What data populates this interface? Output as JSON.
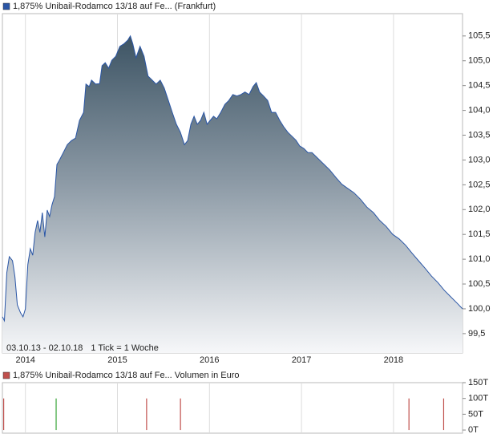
{
  "chart_data": [
    {
      "type": "area",
      "series": [
        {
          "name": "1,875% Unibail-Rodamco 13/18 auf Fe... (Frankfurt)",
          "color": "#2a56a6",
          "x": [
            2013.75,
            2013.772,
            2013.798,
            2013.825,
            2013.86,
            2013.886,
            2013.912,
            2013.947,
            2013.974,
            2014.0,
            2014.026,
            2014.053,
            2014.079,
            2014.105,
            2014.132,
            2014.158,
            2014.184,
            2014.211,
            2014.237,
            2014.263,
            2014.289,
            2014.316,
            2014.342,
            2014.368,
            2014.412,
            2014.456,
            2014.5,
            2014.544,
            2014.588,
            2014.632,
            2014.658,
            2014.693,
            2014.719,
            2014.763,
            2014.807,
            2014.833,
            2014.868,
            2014.904,
            2014.939,
            2014.982,
            2015.026,
            2015.07,
            2015.114,
            2015.14,
            2015.167,
            2015.202,
            2015.246,
            2015.289,
            2015.333,
            2015.377,
            2015.421,
            2015.465,
            2015.509,
            2015.553,
            2015.596,
            2015.64,
            2015.684,
            2015.728,
            2015.763,
            2015.798,
            2015.833,
            2015.868,
            2015.904,
            2015.939,
            2015.974,
            2016.009,
            2016.044,
            2016.079,
            2016.123,
            2016.167,
            2016.211,
            2016.254,
            2016.298,
            2016.342,
            2016.386,
            2016.43,
            2016.474,
            2016.509,
            2016.544,
            2016.588,
            2016.632,
            2016.675,
            2016.719,
            2016.763,
            2016.807,
            2016.851,
            2016.895,
            2016.939,
            2016.982,
            2017.026,
            2017.07,
            2017.114,
            2017.158,
            2017.202,
            2017.246,
            2017.307,
            2017.377,
            2017.439,
            2017.5,
            2017.57,
            2017.64,
            2017.711,
            2017.781,
            2017.851,
            2017.921,
            2017.991,
            2018.061,
            2018.132,
            2018.202,
            2018.272,
            2018.342,
            2018.412,
            2018.482,
            2018.553,
            2018.623,
            2018.693,
            2018.75
          ],
          "values": [
            99.84,
            99.76,
            100.73,
            101.05,
            100.97,
            100.65,
            100.08,
            99.92,
            99.84,
            100.0,
            100.89,
            101.21,
            101.08,
            101.54,
            101.78,
            101.54,
            101.94,
            101.45,
            101.99,
            101.86,
            102.1,
            102.26,
            102.91,
            102.99,
            103.15,
            103.31,
            103.39,
            103.44,
            103.8,
            103.96,
            104.53,
            104.48,
            104.61,
            104.53,
            104.54,
            104.9,
            104.96,
            104.85,
            105.01,
            105.09,
            105.29,
            105.34,
            105.42,
            105.5,
            105.34,
            105.06,
            105.29,
            105.09,
            104.69,
            104.61,
            104.53,
            104.61,
            104.45,
            104.2,
            103.96,
            103.72,
            103.56,
            103.31,
            103.39,
            103.72,
            103.88,
            103.72,
            103.8,
            103.96,
            103.72,
            103.8,
            103.88,
            103.83,
            103.96,
            104.12,
            104.2,
            104.32,
            104.29,
            104.32,
            104.37,
            104.32,
            104.48,
            104.56,
            104.37,
            104.29,
            104.2,
            103.96,
            103.96,
            103.8,
            103.67,
            103.56,
            103.48,
            103.4,
            103.28,
            103.23,
            103.15,
            103.15,
            103.07,
            102.99,
            102.91,
            102.8,
            102.64,
            102.51,
            102.43,
            102.34,
            102.21,
            102.05,
            101.94,
            101.78,
            101.66,
            101.5,
            101.41,
            101.28,
            101.12,
            100.97,
            100.82,
            100.66,
            100.53,
            100.37,
            100.24,
            100.11,
            100.0
          ]
        }
      ],
      "xlim": [
        2013.75,
        2018.75
      ],
      "xticks": [
        2014,
        2015,
        2016,
        2017,
        2018
      ],
      "ylim": [
        99.11,
        105.95
      ],
      "yticks": [
        {
          "value": 99.5,
          "label": "99,5"
        },
        {
          "value": 100.0,
          "label": "100,0"
        },
        {
          "value": 100.5,
          "label": "100,5"
        },
        {
          "value": 101.0,
          "label": "101,0"
        },
        {
          "value": 101.5,
          "label": "101,5"
        },
        {
          "value": 102.0,
          "label": "102,0"
        },
        {
          "value": 102.5,
          "label": "102,5"
        },
        {
          "value": 103.0,
          "label": "103,0"
        },
        {
          "value": 103.5,
          "label": "103,5"
        },
        {
          "value": 104.0,
          "label": "104,0"
        },
        {
          "value": 104.5,
          "label": "104,5"
        },
        {
          "value": 105.0,
          "label": "105,0"
        },
        {
          "value": 105.5,
          "label": "105,5"
        }
      ],
      "range_label": "03.10.13 - 02.10.18",
      "tick_note": "1 Tick = 1 Woche",
      "grid": "x"
    },
    {
      "type": "bar",
      "series": [
        {
          "name": "1,875% Unibail-Rodamco 13/18 auf Fe... Volumen in Euro",
          "color": "#c0504d",
          "x": [
            2013.763,
            2014.333,
            2015.316,
            2015.684,
            2018.167,
            2018.544
          ],
          "values": [
            100000,
            100000,
            100000,
            100000,
            100000,
            100000
          ],
          "colors": [
            "#c0504d",
            "#3aa63a",
            "#c0504d",
            "#c0504d",
            "#c0504d",
            "#c0504d"
          ]
        }
      ],
      "xlim": [
        2013.75,
        2018.75
      ],
      "xticks": [
        2014,
        2015,
        2016,
        2017,
        2018
      ],
      "ylim": [
        -10000,
        150000
      ],
      "yticks": [
        {
          "value": 0,
          "label": "0T"
        },
        {
          "value": 50000,
          "label": "50T"
        },
        {
          "value": 100000,
          "label": "100T"
        },
        {
          "value": 150000,
          "label": "150T"
        }
      ],
      "grid": "x"
    }
  ]
}
